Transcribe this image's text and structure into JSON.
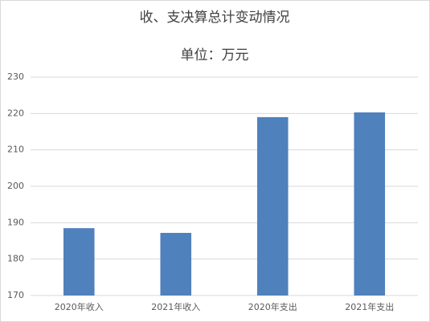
{
  "chart_data": {
    "type": "bar",
    "title": "收、支决算总计变动情况",
    "subtitle": "单位：万元",
    "categories": [
      "2020年收入",
      "2021年收入",
      "2020年支出",
      "2021年支出"
    ],
    "values": [
      188.5,
      187.2,
      219,
      220.3
    ],
    "color": "#4f81bd",
    "ylim": [
      170,
      230
    ],
    "yticks": [
      170,
      180,
      190,
      200,
      210,
      220,
      230
    ],
    "grid": true
  }
}
